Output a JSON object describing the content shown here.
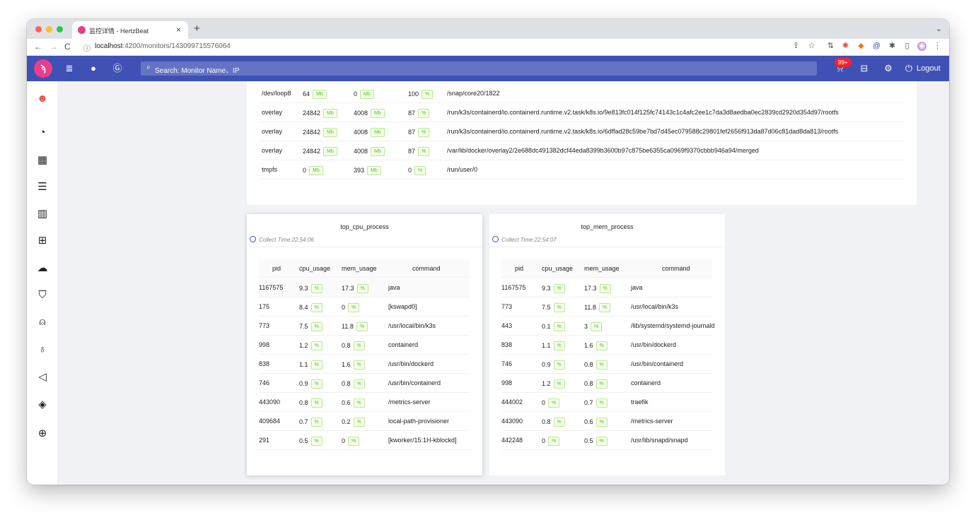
{
  "browser": {
    "tab_title": "监控详情 - HertzBeat",
    "url_host": "localhost",
    "url_path": ":4200/monitors/143099715576064"
  },
  "header": {
    "search_placeholder": "Search: Monitor Name、IP",
    "notification_badge": "99+",
    "logout_label": "Logout",
    "brand_color": "#3f51b5"
  },
  "filesystem": {
    "rows": [
      {
        "filesystem": "/dev/loop8",
        "size": "64",
        "size_unit": "Mb",
        "used": "0",
        "used_unit": "Mb",
        "usage": "100",
        "usage_unit": "%",
        "mounted": "/snap/core20/1822"
      },
      {
        "filesystem": "overlay",
        "size": "24842",
        "size_unit": "Mb",
        "used": "4008",
        "used_unit": "Mb",
        "usage": "87",
        "usage_unit": "%",
        "mounted": "/run/k3s/containerd/io.containerd.runtime.v2.task/k8s.io/9e813fc014f125fc74143c1c4afc2ee1c7da3d8aedba0ec2839cd2920d354d97/rootfs"
      },
      {
        "filesystem": "overlay",
        "size": "24842",
        "size_unit": "Mb",
        "used": "4008",
        "used_unit": "Mb",
        "usage": "87",
        "usage_unit": "%",
        "mounted": "/run/k3s/containerd/io.containerd.runtime.v2.task/k8s.io/6dffad28c59be7bd7d45ec079588c29801fef2656f913da87d06c81dad8da813/rootfs"
      },
      {
        "filesystem": "overlay",
        "size": "24842",
        "size_unit": "Mb",
        "used": "4008",
        "used_unit": "Mb",
        "usage": "87",
        "usage_unit": "%",
        "mounted": "/var/lib/docker/overlay2/2e688dc491382dcf44eda8399b3600b97c875be6355ca0969f9370cbbb946a94/merged"
      },
      {
        "filesystem": "tmpfs",
        "size": "0",
        "size_unit": "Mb",
        "used": "393",
        "used_unit": "Mb",
        "usage": "0",
        "usage_unit": "%",
        "mounted": "/run/user/0"
      }
    ]
  },
  "top_cpu": {
    "title": "top_cpu_process",
    "collect_time": "Collect Time:22:54:06",
    "columns": [
      "pid",
      "cpu_usage",
      "mem_usage",
      "command"
    ],
    "rows": [
      {
        "pid": "1167575",
        "cpu": "9.3",
        "mem": "17.3",
        "command": "java"
      },
      {
        "pid": "175",
        "cpu": "8.4",
        "mem": "0",
        "command": "[kswapd0]"
      },
      {
        "pid": "773",
        "cpu": "7.5",
        "mem": "11.8",
        "command": "/usr/local/bin/k3s"
      },
      {
        "pid": "998",
        "cpu": "1.2",
        "mem": "0.8",
        "command": "containerd"
      },
      {
        "pid": "838",
        "cpu": "1.1",
        "mem": "1.6",
        "command": "/usr/bin/dockerd"
      },
      {
        "pid": "746",
        "cpu": "0.9",
        "mem": "0.8",
        "command": "/usr/bin/containerd"
      },
      {
        "pid": "443090",
        "cpu": "0.8",
        "mem": "0.6",
        "command": "/metrics-server"
      },
      {
        "pid": "409684",
        "cpu": "0.7",
        "mem": "0.2",
        "command": "local-path-provisioner"
      },
      {
        "pid": "291",
        "cpu": "0.5",
        "mem": "0",
        "command": "[kworker/15:1H-kblockd]"
      }
    ]
  },
  "top_mem": {
    "title": "top_mem_process",
    "collect_time": "Collect Time:22:54:07",
    "columns": [
      "pid",
      "cpu_usage",
      "mem_usage",
      "command"
    ],
    "rows": [
      {
        "pid": "1167575",
        "cpu": "9.3",
        "mem": "17.3",
        "command": "java"
      },
      {
        "pid": "773",
        "cpu": "7.5",
        "mem": "11.8",
        "command": "/usr/local/bin/k3s"
      },
      {
        "pid": "443",
        "cpu": "0.1",
        "mem": "3",
        "command": "/lib/systemd/systemd-journald"
      },
      {
        "pid": "838",
        "cpu": "1.1",
        "mem": "1.6",
        "command": "/usr/bin/dockerd"
      },
      {
        "pid": "746",
        "cpu": "0.9",
        "mem": "0.8",
        "command": "/usr/bin/containerd"
      },
      {
        "pid": "998",
        "cpu": "1.2",
        "mem": "0.8",
        "command": "containerd"
      },
      {
        "pid": "444002",
        "cpu": "0",
        "mem": "0.7",
        "command": "traefik"
      },
      {
        "pid": "443090",
        "cpu": "0.8",
        "mem": "0.6",
        "command": "/metrics-server"
      },
      {
        "pid": "442248",
        "cpu": "0",
        "mem": "0.5",
        "command": "/usr/lib/snapd/snapd"
      }
    ]
  },
  "unit_percent": "%",
  "sidebar_icons": [
    "avatar",
    "dashboard-icon",
    "apps-icon",
    "list-icon",
    "layout-icon",
    "merge-icon",
    "cloud-icon",
    "skin-icon",
    "alert-icon",
    "bulb-icon",
    "notification-icon",
    "tag-icon",
    "global-icon"
  ]
}
